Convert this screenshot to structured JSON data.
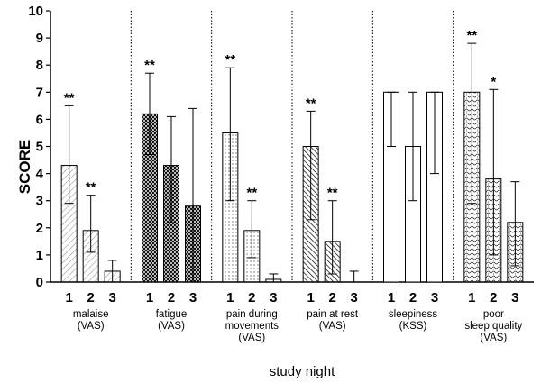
{
  "chart_data": {
    "type": "bar",
    "ylabel": "SCORE",
    "xlabel": "study night",
    "ylim": [
      0,
      10
    ],
    "yticks": [
      0,
      1,
      2,
      3,
      4,
      5,
      6,
      7,
      8,
      9,
      10
    ],
    "grid": false,
    "groups": [
      {
        "label_lines": [
          "malaise",
          "(VAS)"
        ],
        "pattern": "diag-light",
        "bars": [
          {
            "night": "1",
            "value": 4.3,
            "err_low": 2.9,
            "err_high": 6.5,
            "sig": "**"
          },
          {
            "night": "2",
            "value": 1.9,
            "err_low": 1.1,
            "err_high": 3.2,
            "sig": "**"
          },
          {
            "night": "3",
            "value": 0.4,
            "err_low": 0.0,
            "err_high": 0.8,
            "sig": ""
          }
        ]
      },
      {
        "label_lines": [
          "fatigue",
          "(VAS)"
        ],
        "pattern": "crosshatch",
        "bars": [
          {
            "night": "1",
            "value": 6.2,
            "err_low": 4.7,
            "err_high": 7.7,
            "sig": "**"
          },
          {
            "night": "2",
            "value": 4.3,
            "err_low": 2.2,
            "err_high": 6.1,
            "sig": ""
          },
          {
            "night": "3",
            "value": 2.8,
            "err_low": 0.0,
            "err_high": 6.4,
            "sig": ""
          }
        ]
      },
      {
        "label_lines": [
          "pain during",
          "movements",
          "(VAS)"
        ],
        "pattern": "dots",
        "bars": [
          {
            "night": "1",
            "value": 5.5,
            "err_low": 3.0,
            "err_high": 7.9,
            "sig": "**"
          },
          {
            "night": "2",
            "value": 1.9,
            "err_low": 0.9,
            "err_high": 3.0,
            "sig": "**"
          },
          {
            "night": "3",
            "value": 0.1,
            "err_low": 0.0,
            "err_high": 0.3,
            "sig": ""
          }
        ]
      },
      {
        "label_lines": [
          "pain at rest",
          "(VAS)"
        ],
        "pattern": "diag-dense",
        "bars": [
          {
            "night": "1",
            "value": 5.0,
            "err_low": 2.3,
            "err_high": 6.3,
            "sig": "**"
          },
          {
            "night": "2",
            "value": 1.5,
            "err_low": 0.3,
            "err_high": 3.0,
            "sig": "**"
          },
          {
            "night": "3",
            "value": 0.0,
            "err_low": 0.0,
            "err_high": 0.4,
            "sig": ""
          }
        ]
      },
      {
        "label_lines": [
          "sleepiness",
          "(KSS)"
        ],
        "pattern": "none",
        "bars": [
          {
            "night": "1",
            "value": 7.0,
            "err_low": 5.0,
            "err_high": 7.0,
            "sig": ""
          },
          {
            "night": "2",
            "value": 5.0,
            "err_low": 3.0,
            "err_high": 7.0,
            "sig": ""
          },
          {
            "night": "3",
            "value": 7.0,
            "err_low": 4.0,
            "err_high": 7.0,
            "sig": ""
          }
        ]
      },
      {
        "label_lines": [
          "poor",
          "sleep quality",
          "(VAS)"
        ],
        "pattern": "wavy",
        "bars": [
          {
            "night": "1",
            "value": 7.0,
            "err_low": 2.9,
            "err_high": 8.8,
            "sig": "**"
          },
          {
            "night": "2",
            "value": 3.8,
            "err_low": 1.0,
            "err_high": 7.1,
            "sig": "*"
          },
          {
            "night": "3",
            "value": 2.2,
            "err_low": 0.6,
            "err_high": 3.7,
            "sig": ""
          }
        ]
      }
    ]
  }
}
